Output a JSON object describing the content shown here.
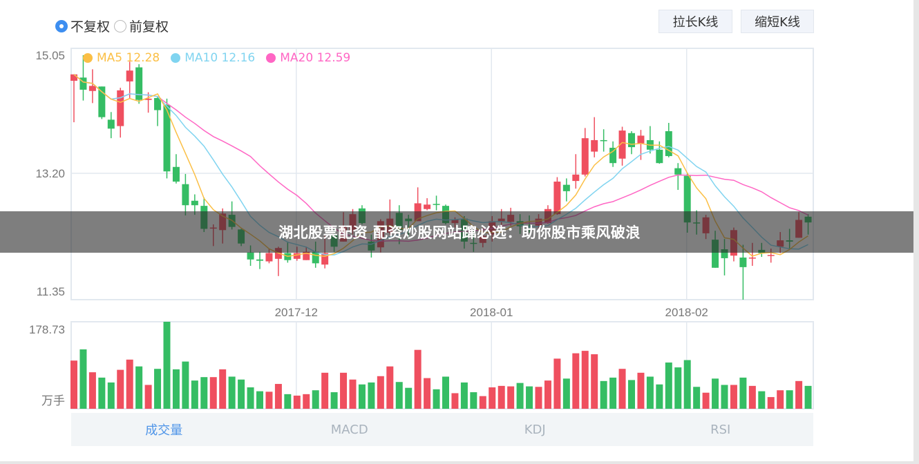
{
  "controls": {
    "adjust_options": [
      {
        "label": "不复权",
        "checked": true
      },
      {
        "label": "前复权",
        "checked": false
      }
    ],
    "stretch_button": "拉长K线",
    "shrink_button": "缩短K线"
  },
  "tabs": [
    {
      "label": "成交量",
      "active": true
    },
    {
      "label": "MACD",
      "active": false
    },
    {
      "label": "KDJ",
      "active": false
    },
    {
      "label": "RSI",
      "active": false
    }
  ],
  "banner": "湖北股票配资 配资炒股网站蹿必选：助你股市乘风破浪",
  "colors": {
    "up": "#ef4f5f",
    "down": "#35bd64",
    "ma5": "#fbbf45",
    "ma10": "#80d4f0",
    "ma20": "#ff66c4",
    "grid": "#e2e8ef",
    "accent": "#3d8ef0"
  },
  "chart_data": [
    {
      "type": "candlestick",
      "legend": [
        {
          "name": "MA5",
          "value": "12.28",
          "color": "#fbbf45"
        },
        {
          "name": "MA10",
          "value": "12.16",
          "color": "#80d4f0"
        },
        {
          "name": "MA20",
          "value": "12.59",
          "color": "#ff66c4"
        }
      ],
      "legend_placement": "top-left",
      "y_ticks": [
        "15.05",
        "13.20",
        "11.35"
      ],
      "ylim": [
        11.22,
        15.16
      ],
      "x_ticks": [
        {
          "index": 24,
          "label": "2017-12"
        },
        {
          "index": 45,
          "label": "2018-01"
        },
        {
          "index": 66,
          "label": "2018-02"
        }
      ],
      "grid": true,
      "ohlc": [
        [
          14.65,
          14.75,
          14.0,
          14.75
        ],
        [
          14.7,
          15.05,
          14.34,
          14.51
        ],
        [
          14.49,
          14.83,
          14.3,
          14.57
        ],
        [
          14.56,
          14.56,
          14.05,
          14.08
        ],
        [
          14.04,
          14.16,
          13.75,
          13.9
        ],
        [
          13.94,
          14.54,
          13.76,
          14.5
        ],
        [
          14.64,
          14.95,
          14.37,
          14.81
        ],
        [
          14.86,
          14.91,
          14.29,
          14.35
        ],
        [
          14.35,
          14.47,
          14.15,
          14.37
        ],
        [
          14.38,
          14.4,
          13.94,
          14.19
        ],
        [
          14.27,
          14.37,
          13.12,
          13.23
        ],
        [
          13.3,
          13.5,
          13.04,
          13.07
        ],
        [
          13.03,
          13.19,
          12.54,
          12.7
        ],
        [
          12.77,
          12.87,
          12.55,
          12.7
        ],
        [
          12.69,
          12.82,
          12.28,
          12.33
        ],
        [
          12.34,
          12.4,
          12.06,
          12.35
        ],
        [
          12.31,
          12.65,
          12.1,
          12.57
        ],
        [
          12.55,
          12.76,
          12.32,
          12.36
        ],
        [
          12.32,
          12.33,
          12.06,
          12.1
        ],
        [
          11.96,
          12.07,
          11.75,
          11.85
        ],
        [
          11.85,
          11.97,
          11.7,
          11.83
        ],
        [
          11.82,
          12.02,
          11.79,
          11.95
        ],
        [
          11.86,
          12.05,
          11.59,
          12.03
        ],
        [
          11.95,
          12.13,
          11.8,
          11.84
        ],
        [
          11.86,
          12.05,
          11.83,
          11.95
        ],
        [
          11.84,
          12.05,
          11.84,
          11.97
        ],
        [
          11.97,
          12.13,
          11.72,
          11.79
        ],
        [
          11.77,
          12.22,
          11.71,
          11.95
        ],
        [
          12.24,
          12.35,
          11.97,
          12.05
        ],
        [
          12.13,
          12.59,
          12.13,
          12.37
        ],
        [
          12.31,
          12.64,
          12.24,
          12.56
        ],
        [
          12.65,
          12.7,
          12.4,
          12.42
        ],
        [
          12.13,
          12.24,
          11.88,
          11.99
        ],
        [
          12.04,
          12.48,
          11.96,
          12.45
        ],
        [
          12.27,
          12.79,
          12.24,
          12.49
        ],
        [
          12.58,
          12.7,
          12.09,
          12.31
        ],
        [
          12.49,
          12.55,
          12.18,
          12.45
        ],
        [
          12.45,
          12.98,
          12.45,
          12.73
        ],
        [
          12.64,
          12.81,
          12.62,
          12.71
        ],
        [
          12.72,
          12.85,
          12.62,
          12.71
        ],
        [
          12.69,
          12.71,
          12.4,
          12.42
        ],
        [
          12.42,
          12.51,
          12.35,
          12.48
        ],
        [
          12.49,
          12.53,
          12.02,
          12.13
        ],
        [
          12.11,
          12.31,
          11.97,
          12.1
        ],
        [
          12.11,
          12.35,
          12.04,
          12.22
        ],
        [
          12.24,
          12.53,
          12.13,
          12.45
        ],
        [
          12.45,
          12.64,
          12.35,
          12.49
        ],
        [
          12.44,
          12.66,
          12.38,
          12.55
        ],
        [
          12.45,
          12.56,
          12.25,
          12.37
        ],
        [
          12.38,
          12.54,
          12.27,
          12.37
        ],
        [
          12.38,
          12.56,
          12.29,
          12.49
        ],
        [
          12.42,
          12.7,
          12.41,
          12.64
        ],
        [
          12.56,
          13.14,
          12.55,
          13.07
        ],
        [
          13.02,
          13.12,
          12.76,
          12.92
        ],
        [
          13.08,
          13.5,
          12.96,
          13.18
        ],
        [
          13.18,
          13.91,
          13.15,
          13.75
        ],
        [
          13.54,
          14.08,
          13.45,
          13.72
        ],
        [
          13.72,
          13.89,
          13.54,
          13.71
        ],
        [
          13.6,
          13.7,
          13.3,
          13.36
        ],
        [
          13.43,
          13.93,
          13.32,
          13.87
        ],
        [
          13.83,
          13.86,
          13.5,
          13.61
        ],
        [
          13.67,
          13.88,
          13.41,
          13.79
        ],
        [
          13.72,
          13.94,
          13.51,
          13.57
        ],
        [
          13.57,
          13.7,
          13.35,
          13.36
        ],
        [
          13.86,
          13.99,
          13.45,
          13.47
        ],
        [
          13.28,
          13.36,
          12.94,
          13.18
        ],
        [
          13.16,
          13.21,
          12.27,
          12.43
        ],
        [
          12.43,
          12.62,
          12.24,
          12.42
        ],
        [
          12.26,
          12.55,
          12.17,
          12.51
        ],
        [
          12.16,
          12.3,
          11.72,
          11.72
        ],
        [
          12.01,
          12.17,
          11.6,
          11.87
        ],
        [
          11.91,
          12.35,
          11.82,
          12.31
        ],
        [
          11.88,
          12.08,
          11.22,
          11.73
        ],
        [
          11.87,
          12.11,
          11.75,
          11.88
        ],
        [
          12.0,
          12.11,
          11.89,
          11.95
        ],
        [
          11.91,
          12.02,
          11.8,
          11.92
        ],
        [
          12.05,
          12.28,
          11.95,
          12.15
        ],
        [
          12.15,
          12.33,
          12.02,
          12.13
        ],
        [
          12.19,
          12.59,
          12.19,
          12.47
        ],
        [
          12.52,
          12.56,
          12.24,
          12.43
        ]
      ]
    },
    {
      "type": "bar",
      "y_ticks": [
        "178.73"
      ],
      "unit": "万手",
      "ylim": [
        0,
        178.73
      ],
      "values": [
        99,
        122,
        75,
        64,
        54,
        80,
        101,
        87,
        49,
        82,
        178.73,
        81,
        97,
        58,
        65,
        65,
        81,
        66,
        60,
        44,
        36,
        35,
        51,
        30,
        27,
        30,
        38,
        74,
        34,
        74,
        60,
        50,
        54,
        67,
        87,
        55,
        43,
        121,
        63,
        40,
        66,
        32,
        54,
        34,
        26,
        44,
        47,
        46,
        53,
        46,
        45,
        58,
        103,
        62,
        114,
        119,
        112,
        57,
        64,
        82,
        59,
        74,
        66,
        50,
        95,
        85,
        100,
        45,
        33,
        62,
        49,
        49,
        64,
        47,
        36,
        24,
        38,
        38,
        57,
        47
      ]
    }
  ]
}
